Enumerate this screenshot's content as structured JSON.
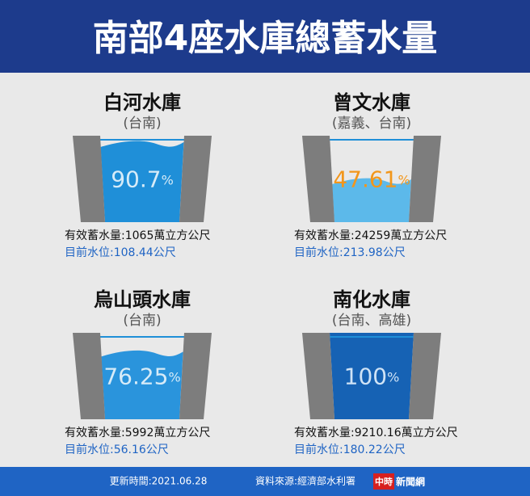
{
  "header": {
    "title": "南部4座水庫總蓄水量"
  },
  "chart_data": [
    {
      "type": "reservoir",
      "title": "白河水庫",
      "subtitle": "(台南)",
      "value": 90.7,
      "unit": "%",
      "color": "#1f8fd8",
      "label_color": "#d6ebf8",
      "storage": "有效蓄水量:1065萬立方公尺",
      "level": "目前水位:108.44公尺"
    },
    {
      "type": "reservoir",
      "title": "曾文水庫",
      "subtitle": "(嘉義、台南)",
      "value": 47.61,
      "unit": "%",
      "color": "#5cb9ea",
      "label_color": "#f2961b",
      "storage": "有效蓄水量:24259萬立方公尺",
      "level": "目前水位:213.98公尺"
    },
    {
      "type": "reservoir",
      "title": "烏山頭水庫",
      "subtitle": "(台南)",
      "value": 76.25,
      "unit": "%",
      "color": "#2a94dc",
      "label_color": "#d6ebf8",
      "storage": "有效蓄水量:5992萬立方公尺",
      "level": "目前水位:56.16公尺"
    },
    {
      "type": "reservoir",
      "title": "南化水庫",
      "subtitle": "(台南、高雄)",
      "value": 100,
      "unit": "%",
      "color": "#1662b4",
      "label_color": "#cfe3f6",
      "storage": "有效蓄水量:9210.16萬立方公尺",
      "level": "目前水位:180.22公尺"
    }
  ],
  "footer": {
    "updated": "更新時間:2021.06.28",
    "source": "資料來源:經濟部水利署",
    "logo_a": "中時",
    "logo_b": "新聞網"
  }
}
